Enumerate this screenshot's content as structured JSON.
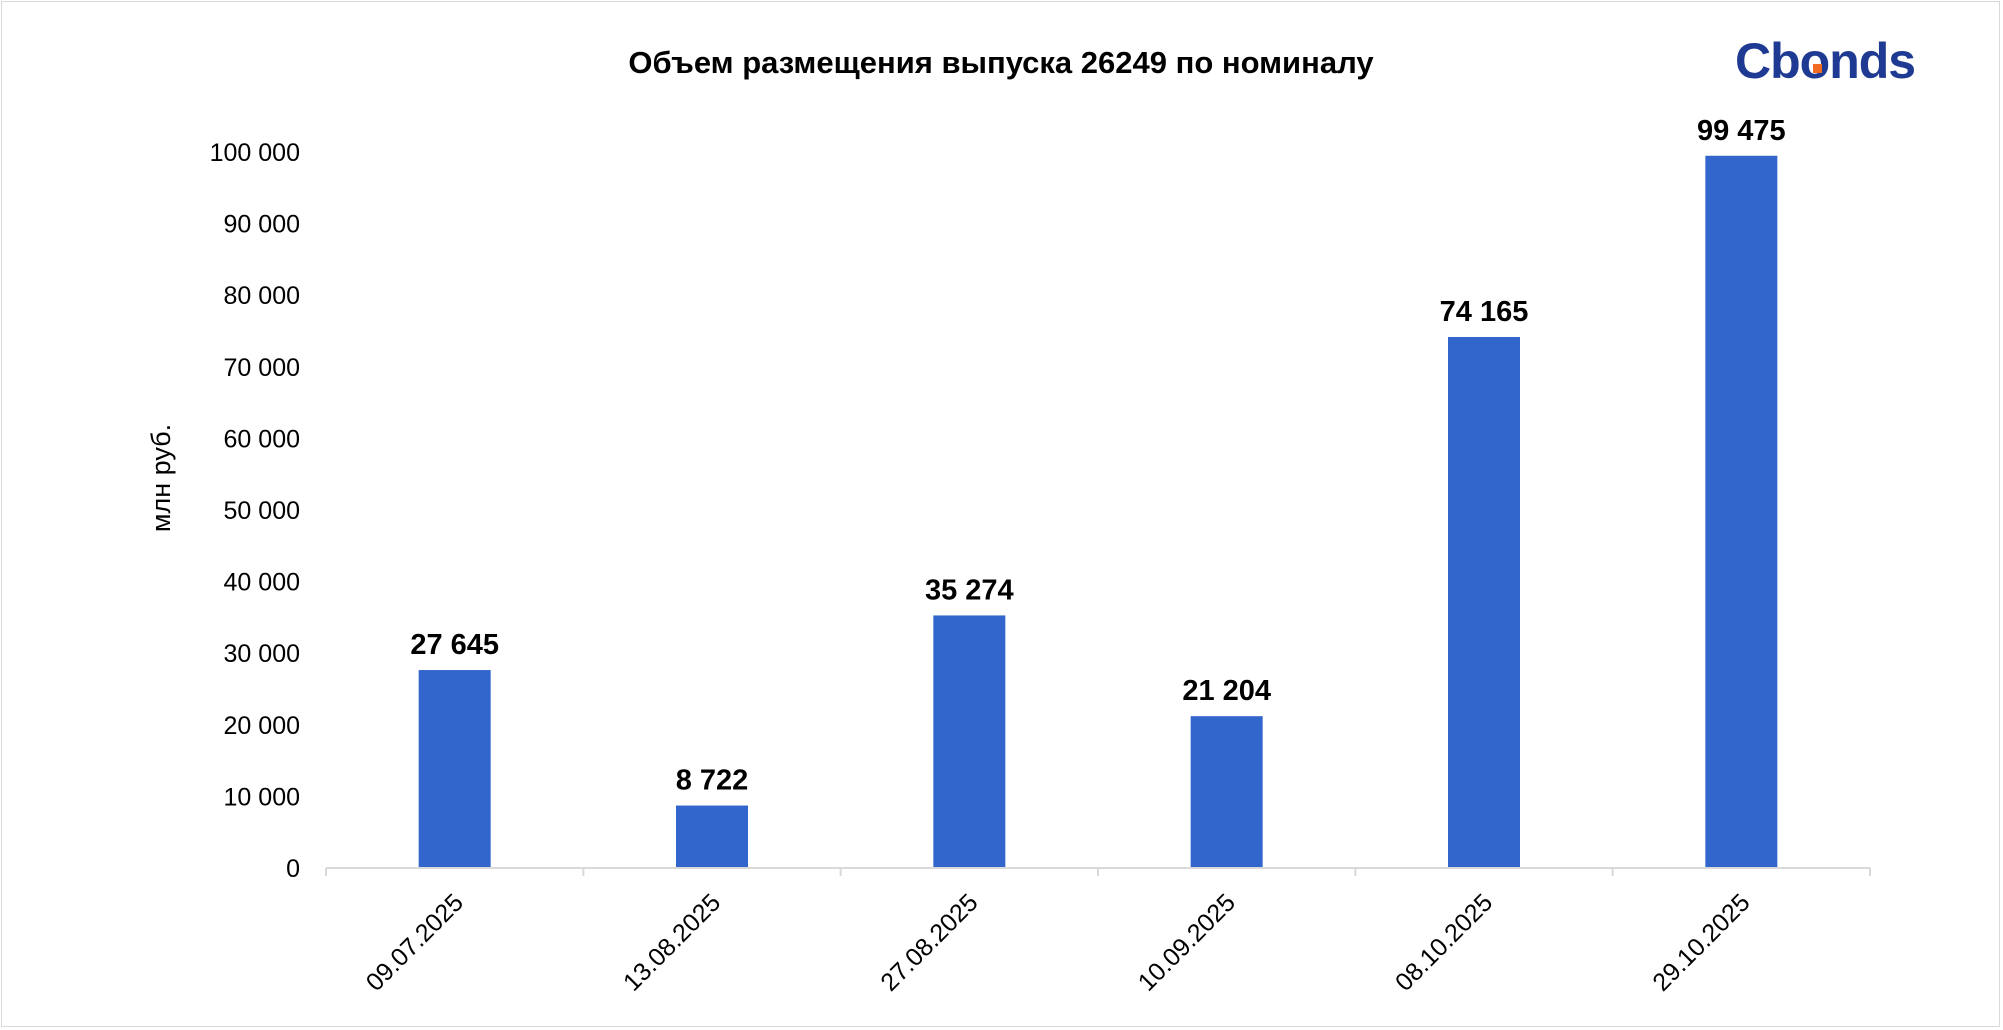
{
  "chart_data": {
    "type": "bar",
    "title": "Объем размещения выпуска 26249 по номиналу",
    "ylabel": "млн руб.",
    "xlabel": "",
    "categories": [
      "09.07.2025",
      "13.08.2025",
      "27.08.2025",
      "10.09.2025",
      "08.10.2025",
      "29.10.2025"
    ],
    "values": [
      27645,
      8722,
      35274,
      21204,
      74165,
      99475
    ],
    "data_labels": [
      "27 645",
      "8 722",
      "35 274",
      "21 204",
      "74 165",
      "99 475"
    ],
    "ylim": [
      0,
      100000
    ],
    "yticks": [
      0,
      10000,
      20000,
      30000,
      40000,
      50000,
      60000,
      70000,
      80000,
      90000,
      100000
    ],
    "ytick_labels": [
      "0",
      "10 000",
      "20 000",
      "30 000",
      "40 000",
      "50 000",
      "60 000",
      "70 000",
      "80 000",
      "90 000",
      "100 000"
    ],
    "grid": false,
    "legend": "none",
    "bar_color": "#3366CC"
  },
  "logo": {
    "text_left": "Cb",
    "text_right": "onds",
    "color": "#1F3A93",
    "accent_color": "#F26B21"
  }
}
